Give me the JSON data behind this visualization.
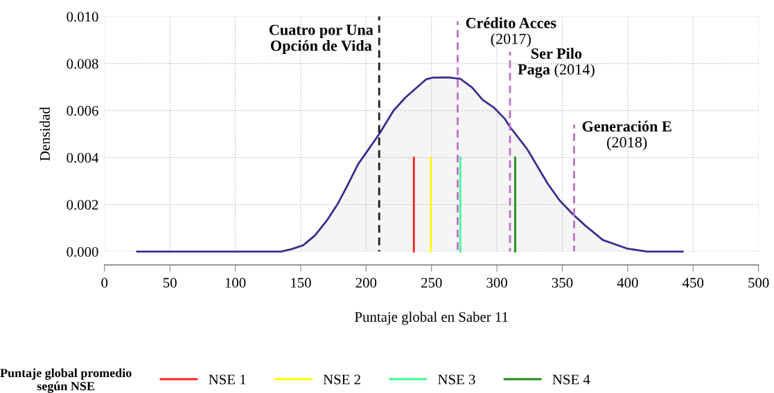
{
  "chart_data": {
    "type": "line",
    "xlabel": "Puntaje global en Saber 11",
    "ylabel": "Densidad",
    "legend_title": "Puntaje global promedio\nsegún NSE",
    "series": [
      {
        "type": "area",
        "color": "#3b2c8e",
        "x": [
          25,
          100,
          120,
          135,
          143,
          152,
          161,
          170,
          178,
          186,
          194,
          200,
          210,
          221,
          230,
          246,
          251,
          263,
          272,
          281,
          289,
          298,
          306,
          310,
          323,
          339,
          348,
          358,
          367,
          381,
          400,
          415,
          442
        ],
        "values": [
          0,
          0,
          0,
          0,
          0.0001,
          0.00027,
          0.00069,
          0.00132,
          0.002,
          0.00284,
          0.00373,
          0.0042,
          0.005,
          0.006,
          0.00655,
          0.00733,
          0.0074,
          0.00741,
          0.00735,
          0.00698,
          0.00646,
          0.00611,
          0.00565,
          0.0053,
          0.00437,
          0.00287,
          0.00217,
          0.00159,
          0.00113,
          0.00049,
          0.00012,
          0,
          0
        ]
      },
      {
        "color": "#1a1a1a",
        "line_style": "dashed",
        "x": [
          210,
          210
        ],
        "values": [
          0,
          0.01
        ]
      },
      {
        "color": "#bf6fc8",
        "line_style": "dashed",
        "x": [
          270,
          270
        ],
        "values": [
          0,
          0.0098
        ]
      },
      {
        "color": "#bf6fc8",
        "line_style": "dashed",
        "x": [
          310,
          310
        ],
        "values": [
          0,
          0.0085
        ]
      },
      {
        "color": "#bf6fc8",
        "line_style": "dashed",
        "x": [
          359,
          359
        ],
        "values": [
          0,
          0.0054
        ]
      },
      {
        "name": "NSE 1",
        "color": "#ff2020",
        "x": [
          236.5,
          236.5
        ],
        "values": [
          0,
          0.004
        ]
      },
      {
        "name": "NSE 2",
        "color": "#ffff00",
        "x": [
          249.5,
          249.5
        ],
        "values": [
          0,
          0.004
        ]
      },
      {
        "name": "NSE 3",
        "color": "#3dfa9a",
        "x": [
          272,
          272
        ],
        "values": [
          0,
          0.004
        ]
      },
      {
        "name": "NSE 4",
        "color": "#1a8a1a",
        "x": [
          314,
          314
        ],
        "values": [
          0,
          0.004
        ]
      }
    ],
    "annotations": [
      {
        "text": "Cuatro por Una\nOpción de Vida",
        "x": 210,
        "y": 0.01
      },
      {
        "text": "Crédito Acces\n(2017)",
        "x": 270,
        "y": 0.0098
      },
      {
        "text": "Ser Pilo\nPaga (2014)",
        "x": 310,
        "y": 0.0085
      },
      {
        "text": "Generación E\n(2018)",
        "x": 359,
        "y": 0.0054
      }
    ],
    "xlim": [
      0,
      500
    ],
    "xticks": [
      0,
      50,
      100,
      150,
      200,
      250,
      300,
      350,
      400,
      450,
      500
    ],
    "ylim": [
      0,
      0.01
    ],
    "yticks": [
      {
        "value": 0,
        "label": "0.000"
      },
      {
        "value": 0.002,
        "label": "0.002"
      },
      {
        "value": 0.004,
        "label": "0.004"
      },
      {
        "value": 0.006,
        "label": "0.006"
      },
      {
        "value": 0.008,
        "label": "0.008"
      },
      {
        "value": 0.01,
        "label": "0.010"
      }
    ],
    "grid": true,
    "legend": "bottom"
  }
}
